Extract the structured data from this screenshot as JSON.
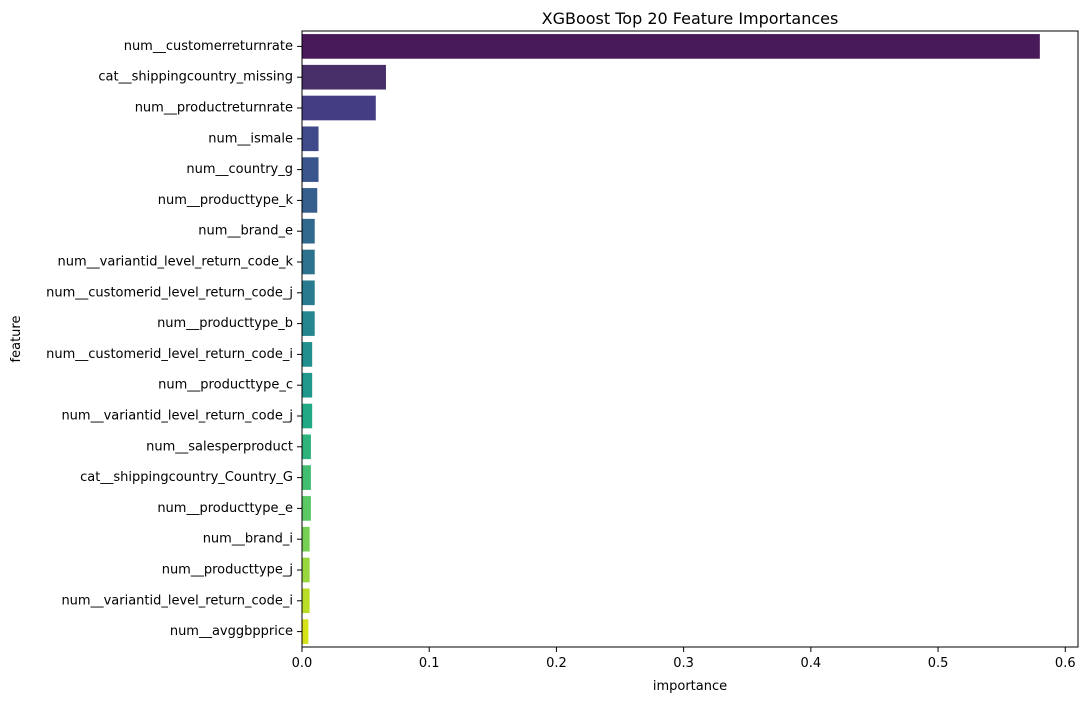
{
  "chart_data": {
    "type": "bar",
    "orientation": "horizontal",
    "title": "XGBoost Top 20 Feature Importances",
    "xlabel": "importance",
    "ylabel": "feature",
    "xlim": [
      0,
      0.61
    ],
    "x_ticks": [
      0.0,
      0.1,
      0.2,
      0.3,
      0.4,
      0.5,
      0.6
    ],
    "x_tick_labels": [
      "0.0",
      "0.1",
      "0.2",
      "0.3",
      "0.4",
      "0.5",
      "0.6"
    ],
    "grid": false,
    "colormap": "viridis",
    "categories": [
      "num__customerreturnrate",
      "cat__shippingcountry_missing",
      "num__productreturnrate",
      "num__ismale",
      "num__country_g",
      "num__producttype_k",
      "num__brand_e",
      "num__variantid_level_return_code_k",
      "num__customerid_level_return_code_j",
      "num__producttype_b",
      "num__customerid_level_return_code_i",
      "num__producttype_c",
      "num__variantid_level_return_code_j",
      "num__salesperproduct",
      "cat__shippingcountry_Country_G",
      "num__producttype_e",
      "num__brand_i",
      "num__producttype_j",
      "num__variantid_level_return_code_i",
      "num__avggbpprice"
    ],
    "values": [
      0.58,
      0.066,
      0.058,
      0.013,
      0.013,
      0.012,
      0.01,
      0.01,
      0.01,
      0.01,
      0.008,
      0.008,
      0.008,
      0.007,
      0.007,
      0.007,
      0.006,
      0.006,
      0.006,
      0.005
    ],
    "colors": [
      "#481a5a",
      "#472e69",
      "#433d84",
      "#3f4a8a",
      "#3a548c",
      "#355e8d",
      "#31688e",
      "#2c718e",
      "#287b8e",
      "#25858e",
      "#218f8d",
      "#1f988b",
      "#22a884",
      "#2eb37c",
      "#42be71",
      "#5ac864",
      "#76d054",
      "#98d83e",
      "#bade28",
      "#d5e21a"
    ]
  }
}
